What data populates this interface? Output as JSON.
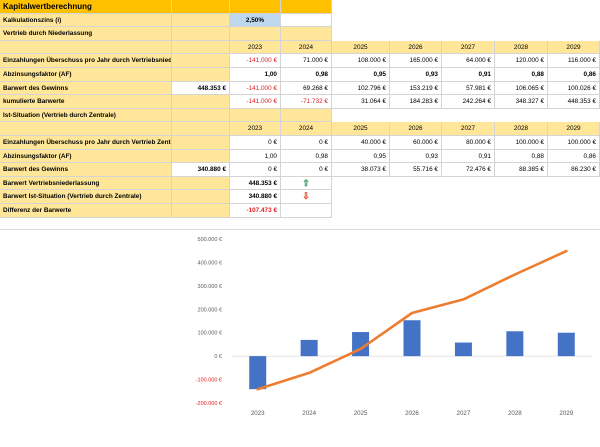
{
  "sheet": {
    "title": "Kapitalwertberechnung",
    "interest_label": "Kalkulationszins (i)",
    "interest_value": "2,50%",
    "section_a": "Vertrieb durch Niederlassung",
    "section_b": "Ist-Situation (Vertrieb durch Zentrale)",
    "years": [
      "2023",
      "2024",
      "2025",
      "2026",
      "2027",
      "2028",
      "2029"
    ],
    "a": {
      "cash_label": "Einzahlungen Überschuss pro Jahr durch Vertriebsniederlassung",
      "cash": [
        "-141.000 €",
        "71.000 €",
        "108.000 €",
        "165.000 €",
        "64.000 €",
        "120.000 €",
        "116.000 €"
      ],
      "af_label": "Abzinsungsfaktor (AF)",
      "af": [
        "1,00",
        "0,98",
        "0,95",
        "0,93",
        "0,91",
        "0,88",
        "0,86"
      ],
      "pv_label": "Barwert des Gewinns",
      "pv_total": "448.353 €",
      "pv": [
        "-141.000 €",
        "69.268 €",
        "102.796 €",
        "153.219 €",
        "57.981 €",
        "106.065 €",
        "100.026 €"
      ],
      "cum_label": "kumulierte Barwerte",
      "cum": [
        "-141.000 €",
        "-71.732 €",
        "31.064 €",
        "184.283 €",
        "242.264 €",
        "348.327 €",
        "448.353 €"
      ]
    },
    "b": {
      "cash_label": "Einzahlungen Überschuss pro Jahr durch Vertrieb Zentrale",
      "cash": [
        "0 €",
        "0 €",
        "40.000 €",
        "60.000 €",
        "80.000 €",
        "100.000 €",
        "100.000 €"
      ],
      "af_label": "Abzinsungsfaktor (AF)",
      "af": [
        "1,00",
        "0,98",
        "0,95",
        "0,93",
        "0,91",
        "0,88",
        "0,86"
      ],
      "pv_label": "Barwert des Gewinns",
      "pv_total": "340.880 €",
      "pv": [
        "0 €",
        "0 €",
        "38.073 €",
        "55.716 €",
        "72.476 €",
        "88.385 €",
        "86.230 €"
      ]
    },
    "summary": {
      "a_label": "Barwert Vertriebsniederlassung",
      "a_value": "448.353 €",
      "b_label": "Barwert Ist-Situation (Vertrieb durch Zentrale)",
      "b_value": "340.880 €",
      "diff_label": "Differenz der Barwerte",
      "diff_value": "-107.473 €"
    },
    "colors": {
      "orange": "#ffc000",
      "yellow": "#ffe699",
      "blue_cell": "#bdd7ee",
      "negative": "#e02020"
    }
  },
  "chart_data": {
    "type": "bar",
    "categories": [
      "2023",
      "2024",
      "2025",
      "2026",
      "2027",
      "2028",
      "2029"
    ],
    "series": [
      {
        "kind": "bar",
        "color": "#4472c4",
        "values": [
          -141000,
          69268,
          102796,
          153219,
          57981,
          106065,
          100026
        ]
      },
      {
        "kind": "line",
        "color": "#ed7d31",
        "values": [
          -141000,
          -71732,
          31064,
          184283,
          242264,
          348327,
          448353
        ]
      }
    ],
    "ylim": [
      -200000,
      500000
    ],
    "yticks": [
      "500.000 €",
      "400.000 €",
      "300.000 €",
      "200.000 €",
      "100.000 €",
      "0 €",
      "-100.000 €",
      "-200.000 €"
    ],
    "ytick_values": [
      500000,
      400000,
      300000,
      200000,
      100000,
      0,
      -100000,
      -200000
    ],
    "grid": false
  }
}
